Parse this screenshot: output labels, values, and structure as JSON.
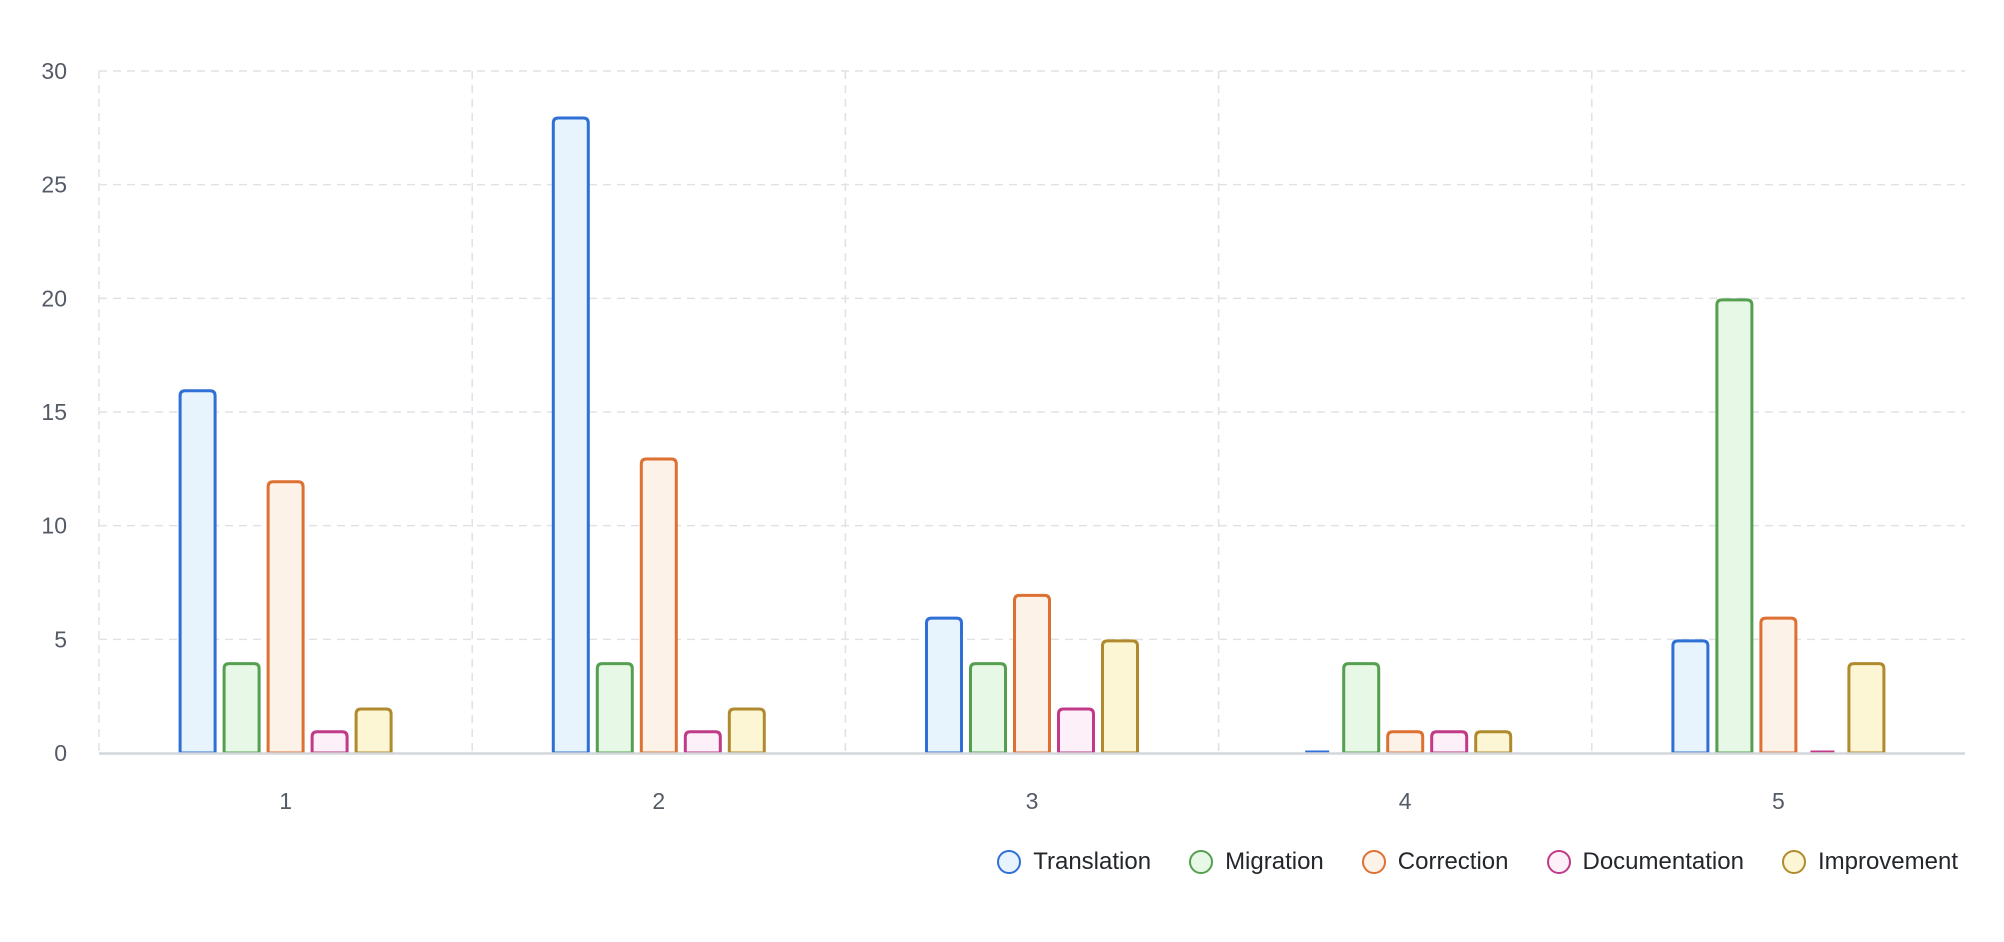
{
  "chart_data": {
    "type": "bar",
    "title": "",
    "xlabel": "",
    "ylabel": "",
    "categories": [
      "1",
      "2",
      "3",
      "4",
      "5"
    ],
    "series": [
      {
        "name": "Translation",
        "values": [
          16,
          28,
          6,
          0,
          5
        ],
        "stroke": "#2f6fd6",
        "fill": "#e8f4fd"
      },
      {
        "name": "Migration",
        "values": [
          4,
          4,
          4,
          4,
          20
        ],
        "stroke": "#55a050",
        "fill": "#e8f8e6"
      },
      {
        "name": "Correction",
        "values": [
          12,
          13,
          7,
          1,
          6
        ],
        "stroke": "#dd7033",
        "fill": "#fdf2e8"
      },
      {
        "name": "Documentation",
        "values": [
          1,
          1,
          2,
          1,
          0
        ],
        "stroke": "#c03a88",
        "fill": "#fdf0f8"
      },
      {
        "name": "Improvement",
        "values": [
          2,
          2,
          5,
          1,
          4
        ],
        "stroke": "#b08a2e",
        "fill": "#fcf6d4"
      }
    ],
    "ylim": [
      0,
      30
    ],
    "yticks": [
      0,
      5,
      10,
      15,
      20,
      25,
      30
    ],
    "grid": true,
    "legend_position": "bottom-right"
  },
  "colors": {
    "grid": "#e0e2e6",
    "axis": "#d4d7dc",
    "tick_text": "#555b66",
    "legend_text": "#23262b"
  }
}
